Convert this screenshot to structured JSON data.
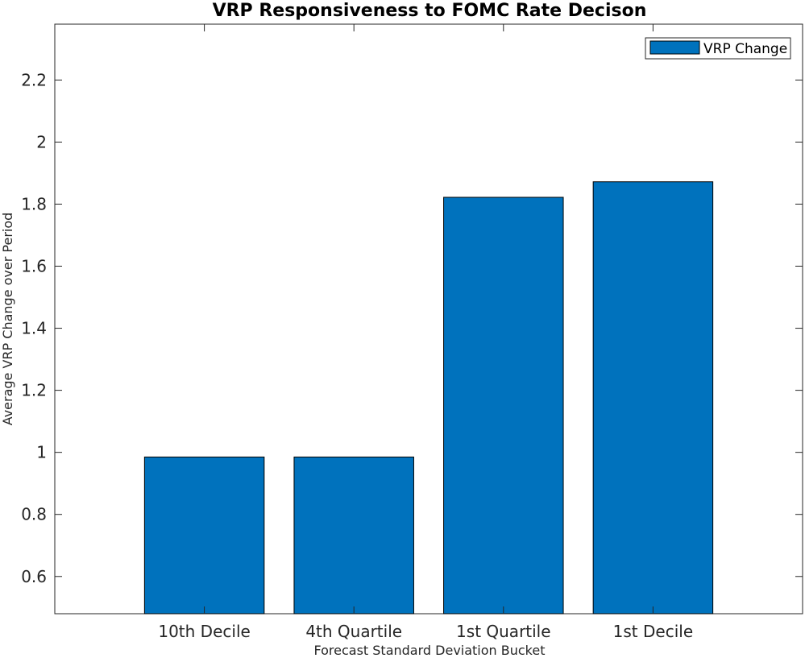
{
  "chart_data": {
    "type": "bar",
    "title": "VRP Responsiveness to FOMC Rate Decison",
    "xlabel": "Forecast Standard Deviation Bucket",
    "ylabel": "Average VRP Change over Period",
    "categories": [
      "10th Decile",
      "4th Quartile",
      "1st Quartile",
      "1st Decile"
    ],
    "series": [
      {
        "name": "VRP Change",
        "values": [
          0.985,
          0.985,
          1.822,
          1.872
        ],
        "color": "#0072BD"
      }
    ],
    "ylim": [
      0.48,
      2.38
    ],
    "yticks": [
      0.6,
      0.8,
      1,
      1.2,
      1.4,
      1.6,
      1.8,
      2,
      2.2
    ],
    "ytick_labels": [
      "0.6",
      "0.8",
      "1",
      "1.2",
      "1.4",
      "1.6",
      "1.8",
      "2",
      "2.2"
    ],
    "grid": false,
    "legend_position": "top-right"
  }
}
